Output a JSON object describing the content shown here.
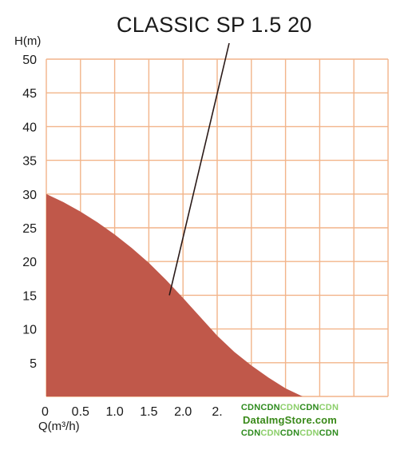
{
  "chart_data": {
    "type": "area",
    "title": "CLASSIC SP 1.5 20",
    "ylabel": "H(m)",
    "xlabel": "Q(m³/h)",
    "xlim": [
      0,
      5
    ],
    "ylim": [
      0,
      50
    ],
    "x_ticks": [
      "0",
      "0.5",
      "1.0",
      "1.5",
      "2.0",
      "2."
    ],
    "y_ticks": [
      "5",
      "10",
      "15",
      "20",
      "25",
      "30",
      "35",
      "40",
      "45",
      "50"
    ],
    "grid": true,
    "series": [
      {
        "x": [
          0,
          0.25,
          0.5,
          0.75,
          1.0,
          1.25,
          1.5,
          1.75,
          2.0,
          2.25,
          2.5,
          2.75,
          3.0,
          3.25,
          3.5,
          3.75
        ],
        "y": [
          30,
          28.8,
          27.4,
          25.8,
          24.0,
          22.0,
          19.8,
          17.3,
          14.6,
          11.8,
          9.0,
          6.6,
          4.6,
          2.8,
          1.2,
          0
        ],
        "color": "#c0584a"
      }
    ],
    "annotation": {
      "text": "CLASSIC SP 1.5 20",
      "points_to": {
        "x": 1.8,
        "y": 15
      }
    },
    "colors": {
      "grid": "#f2b48a",
      "fill": "#c0584a",
      "axis_text": "#1a1a1a"
    }
  },
  "watermark": {
    "row1_parts": [
      "CDN",
      "CDN",
      "CDN",
      "CDN",
      "CDN"
    ],
    "row2": "DataImgStore.com",
    "row3_parts": [
      "CDN",
      "CDN",
      "CDN",
      "CDN",
      "CDN"
    ]
  }
}
